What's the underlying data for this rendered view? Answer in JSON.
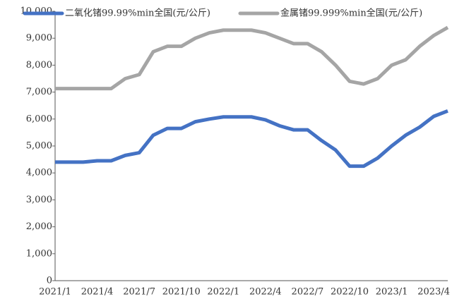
{
  "chart_data": {
    "type": "line",
    "categories": [
      "2021/1",
      null,
      null,
      "2021/4",
      null,
      null,
      "2021/7",
      null,
      null,
      "2021/10",
      null,
      null,
      "2022/1",
      null,
      null,
      "2022/4",
      null,
      null,
      "2022/7",
      null,
      null,
      "2022/10",
      null,
      null,
      "2023/1",
      null,
      null,
      "2023/4",
      null
    ],
    "series": [
      {
        "name": "二氧化锗99.99%min全国(元/公斤)",
        "color": "#4472c4",
        "values": [
          4400,
          4400,
          4400,
          4450,
          4450,
          4650,
          4750,
          5400,
          5650,
          5650,
          5900,
          6000,
          6080,
          6080,
          6080,
          5970,
          5750,
          5600,
          5600,
          5200,
          4850,
          4250,
          4250,
          4550,
          5000,
          5400,
          5700,
          6100,
          6300
        ]
      },
      {
        "name": "金属锗99.999%min全国(元/公斤)",
        "color": "#a5a5a5",
        "values": [
          7130,
          7130,
          7130,
          7130,
          7130,
          7500,
          7650,
          8500,
          8700,
          8700,
          9000,
          9200,
          9300,
          9300,
          9300,
          9200,
          9000,
          8800,
          8800,
          8500,
          8000,
          7400,
          7300,
          7500,
          8000,
          8200,
          8700,
          9100,
          9400
        ]
      }
    ],
    "ylim": [
      0,
      10000
    ],
    "yticks": [
      0,
      {
        "value": 1000,
        "label": "1,000"
      },
      {
        "value": 2000,
        "label": "2,000"
      },
      {
        "value": 3000,
        "label": "3,000"
      },
      {
        "value": 4000,
        "label": "4,000"
      },
      {
        "value": 5000,
        "label": "5,000"
      },
      {
        "value": 6000,
        "label": "6,000"
      },
      {
        "value": 7000,
        "label": "7,000"
      },
      {
        "value": 8000,
        "label": "8,000"
      },
      {
        "value": 9000,
        "label": "9,000"
      },
      {
        "value": 10000,
        "label": "10,000"
      }
    ],
    "grid": false
  }
}
